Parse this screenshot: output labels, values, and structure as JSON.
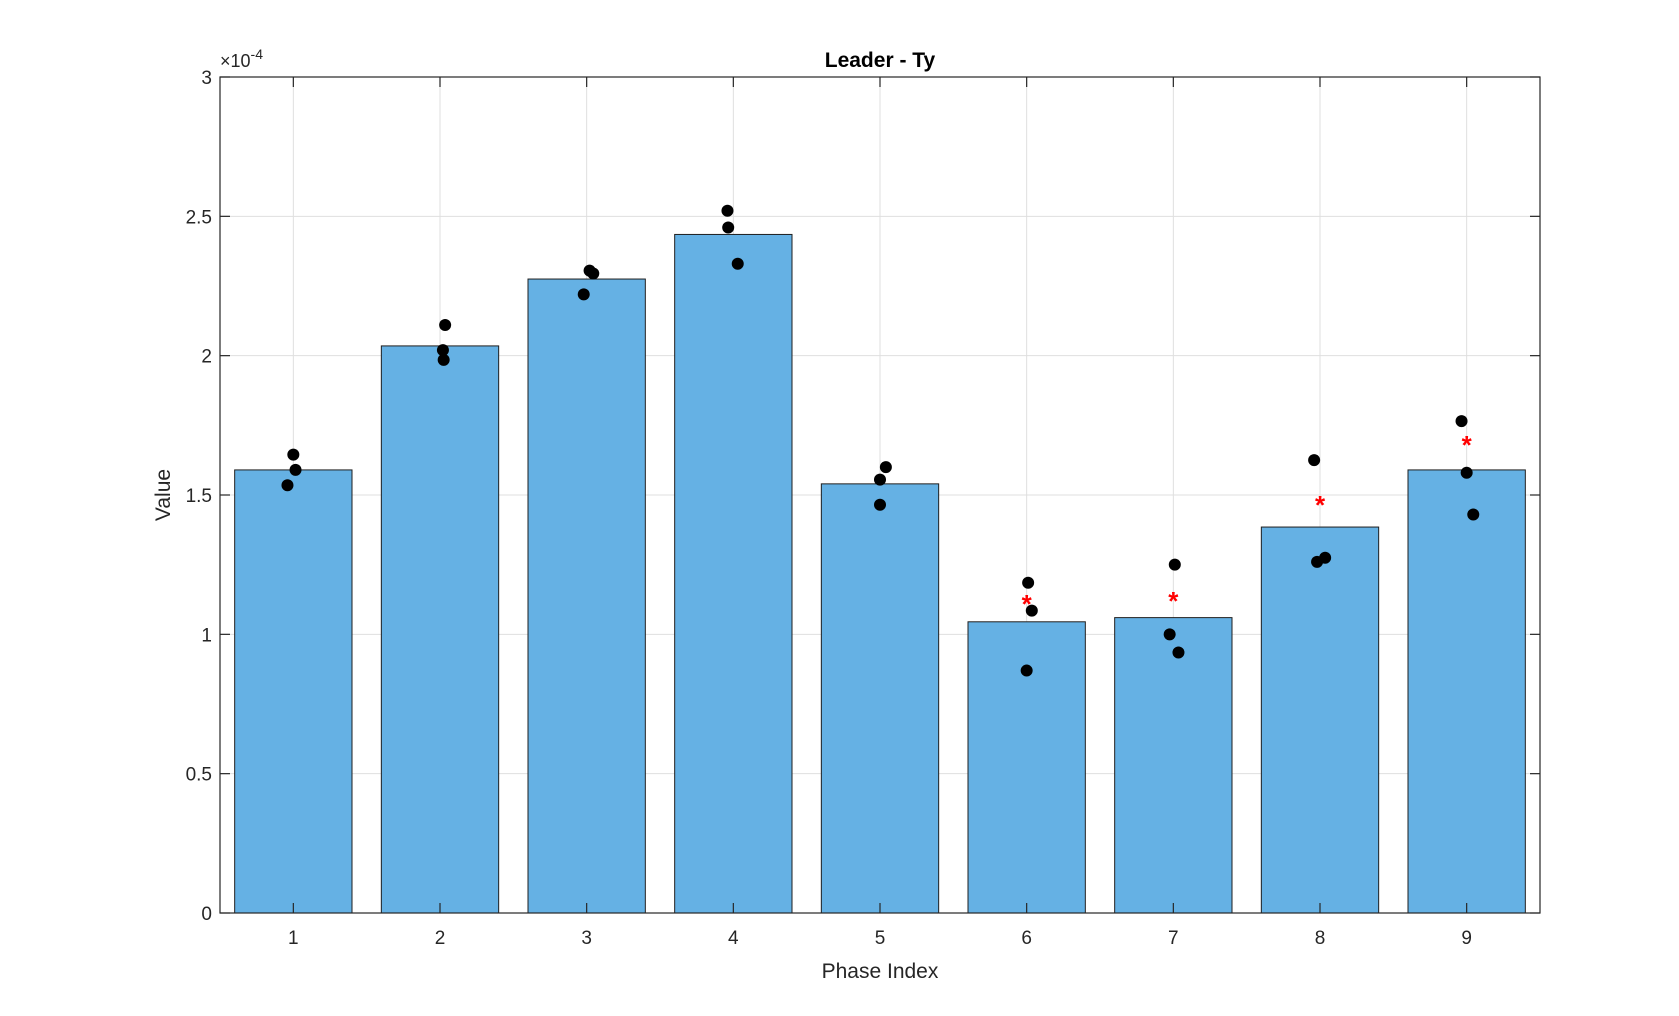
{
  "chart_data": {
    "type": "bar",
    "title": "Leader - Ty",
    "xlabel": "Phase Index",
    "ylabel": "Value",
    "exponent_prefix": "×10",
    "exponent_power": "-4",
    "categories": [
      "1",
      "2",
      "3",
      "4",
      "5",
      "6",
      "7",
      "8",
      "9"
    ],
    "values": [
      1.59,
      2.035,
      2.275,
      2.435,
      1.54,
      1.045,
      1.06,
      1.385,
      1.59
    ],
    "ylim": [
      0,
      3
    ],
    "yticks": [
      0,
      0.5,
      1,
      1.5,
      2,
      2.5,
      3
    ],
    "ytick_labels": [
      "0",
      "0.5",
      "1",
      "1.5",
      "2",
      "2.5",
      "3"
    ],
    "grid": true,
    "bar_color": "#65b1e4",
    "point_color": "#000000",
    "marker_color": "#ff0000",
    "points": [
      {
        "x": 1,
        "values": [
          1.645,
          1.59,
          1.535
        ],
        "offsets": [
          0.0,
          0.015,
          -0.04
        ]
      },
      {
        "x": 2,
        "values": [
          2.11,
          2.02,
          1.985
        ],
        "offsets": [
          0.035,
          0.02,
          0.025
        ]
      },
      {
        "x": 3,
        "values": [
          2.305,
          2.295,
          2.22
        ],
        "offsets": [
          0.02,
          0.045,
          -0.02
        ]
      },
      {
        "x": 4,
        "values": [
          2.52,
          2.46,
          2.33
        ],
        "offsets": [
          -0.04,
          -0.035,
          0.03
        ]
      },
      {
        "x": 5,
        "values": [
          1.6,
          1.555,
          1.465
        ],
        "offsets": [
          0.04,
          0.0,
          0.0
        ]
      },
      {
        "x": 6,
        "values": [
          1.185,
          1.085,
          0.87
        ],
        "offsets": [
          0.01,
          0.035,
          0.0
        ]
      },
      {
        "x": 7,
        "values": [
          1.25,
          1.0,
          0.935
        ],
        "offsets": [
          0.01,
          -0.025,
          0.035
        ]
      },
      {
        "x": 8,
        "values": [
          1.625,
          1.275,
          1.26
        ],
        "offsets": [
          -0.04,
          0.035,
          -0.02
        ]
      },
      {
        "x": 9,
        "values": [
          1.765,
          1.58,
          1.43
        ],
        "offsets": [
          -0.035,
          0.0,
          0.045
        ]
      }
    ],
    "significance_markers": [
      {
        "x": 6,
        "y": 1.12,
        "symbol": "*"
      },
      {
        "x": 7,
        "y": 1.13,
        "symbol": "*"
      },
      {
        "x": 8,
        "y": 1.475,
        "symbol": "*"
      },
      {
        "x": 9,
        "y": 1.69,
        "symbol": "*"
      }
    ]
  }
}
